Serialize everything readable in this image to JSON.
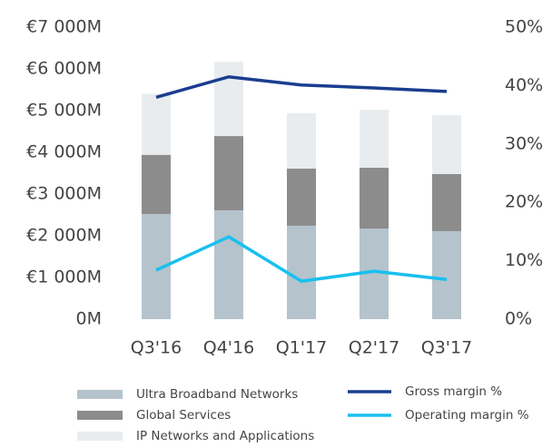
{
  "chart_data": {
    "type": "bar",
    "stacked": true,
    "categories": [
      "Q3'16",
      "Q4'16",
      "Q1'17",
      "Q2'17",
      "Q3'17"
    ],
    "series": [
      {
        "name": "Ultra Broadband Networks",
        "color": "#b5c3cc",
        "values": [
          2520,
          2610,
          2240,
          2170,
          2110
        ]
      },
      {
        "name": "Global Services",
        "color": "#8c8c8c",
        "values": [
          1420,
          1780,
          1370,
          1460,
          1370
        ]
      },
      {
        "name": "IP Networks and Applications",
        "color": "#e8ecee",
        "values": [
          1460,
          1780,
          1330,
          1390,
          1410
        ]
      },
      {
        "name": "Gross margin %",
        "type": "line",
        "axis": "y2",
        "color": "#1a3d8f",
        "values": [
          38.0,
          41.5,
          40.1,
          39.6,
          39.0
        ]
      },
      {
        "name": "Operating margin %",
        "type": "line",
        "axis": "y2",
        "color": "#18c0f0",
        "values": [
          8.4,
          14.1,
          6.5,
          8.2,
          6.8
        ]
      }
    ],
    "ylim": [
      0,
      7000
    ],
    "yticks": [
      {
        "value": 0,
        "label": "0M"
      },
      {
        "value": 1000,
        "label": "€1 000M"
      },
      {
        "value": 2000,
        "label": "€2 000M"
      },
      {
        "value": 3000,
        "label": "€3 000M"
      },
      {
        "value": 4000,
        "label": "€4 000M"
      },
      {
        "value": 5000,
        "label": "€5 000M"
      },
      {
        "value": 6000,
        "label": "€6 000M"
      },
      {
        "value": 7000,
        "label": "€7 000M"
      }
    ],
    "y2lim": [
      0,
      50
    ],
    "y2ticks": [
      {
        "value": 0,
        "label": "0%"
      },
      {
        "value": 10,
        "label": "10%"
      },
      {
        "value": 20,
        "label": "20%"
      },
      {
        "value": 30,
        "label": "30%"
      },
      {
        "value": 40,
        "label": "40%"
      },
      {
        "value": 50,
        "label": "50%"
      }
    ],
    "grid": false,
    "legend": "bottom"
  }
}
